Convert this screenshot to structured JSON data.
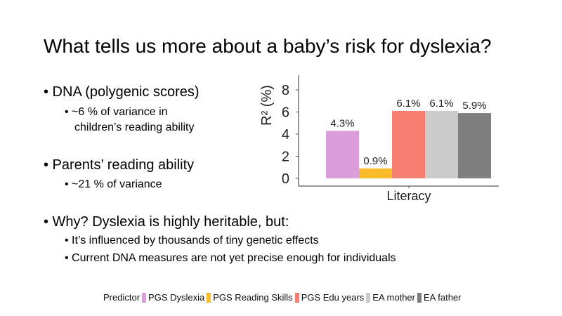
{
  "title": "What tells us more about a baby’s risk for dyslexia?",
  "bullets": [
    {
      "text": "• DNA (polygenic scores)",
      "sub": [
        "•  ~6 % of variance in",
        "children’s reading ability"
      ]
    },
    {
      "text": "• Parents’ reading ability",
      "sub": [
        "• ~21 % of variance"
      ]
    },
    {
      "text": "• Why? Dyslexia is highly heritable, but:",
      "sub": [
        "• It’s influenced by thousands of tiny genetic effects",
        "• Current DNA measures are not yet precise enough for individuals"
      ]
    }
  ],
  "chart_data": {
    "type": "bar",
    "categories": [
      "Literacy"
    ],
    "xlabel": "Literacy",
    "ylabel": "R² (%)",
    "ylim": [
      0,
      9
    ],
    "yticks": [
      0,
      2,
      4,
      6,
      8
    ],
    "grid": false,
    "legend_title": "Predictor",
    "legend_position": "bottom",
    "series": [
      {
        "name": "PGS Dyslexia",
        "values": [
          4.3
        ],
        "label": "4.3%",
        "color": "#DA9EDB"
      },
      {
        "name": "PGS Reading Skills",
        "values": [
          0.9
        ],
        "label": "0.9%",
        "color": "#FBBC2A"
      },
      {
        "name": "PGS Edu years",
        "values": [
          6.1
        ],
        "label": "6.1%",
        "color": "#F77F72"
      },
      {
        "name": "EA mother",
        "values": [
          6.1
        ],
        "label": "6.1%",
        "color": "#CBCBCB"
      },
      {
        "name": "EA father",
        "values": [
          5.9
        ],
        "label": "5.9%",
        "color": "#7F7F7F"
      }
    ]
  }
}
